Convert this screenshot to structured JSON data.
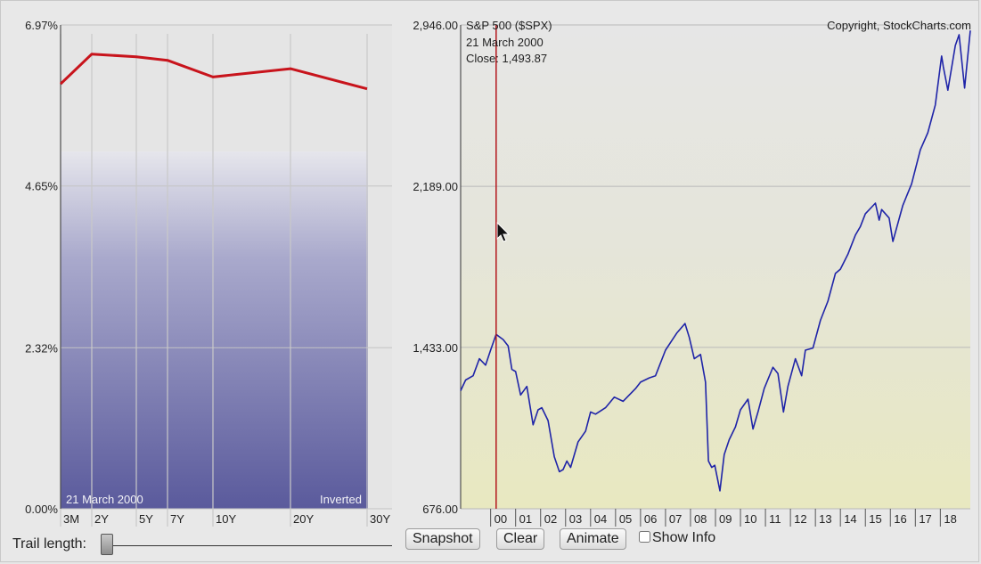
{
  "chart_data": [
    {
      "type": "line",
      "title": "",
      "y_axis": {
        "min": 0,
        "max": 6.97,
        "tick_labels": [
          "6.97%",
          "4.65%",
          "2.32%",
          "0.00%"
        ],
        "tick_values": [
          6.97,
          4.65,
          2.32,
          0
        ]
      },
      "categories": [
        "3M",
        "2Y",
        "5Y",
        "7Y",
        "10Y",
        "20Y",
        "30Y"
      ],
      "category_months": [
        3,
        24,
        60,
        84,
        120,
        240,
        360
      ],
      "series": [
        {
          "values": [
            6.12,
            6.55,
            6.51,
            6.46,
            6.22,
            6.34,
            6.05
          ]
        }
      ],
      "line_color": "#c8141c",
      "fill_gradient": [
        "#e3e3ea",
        "#5a5a9c"
      ],
      "bottom_left_label": "21  March 2000",
      "bottom_right_label": "Inverted",
      "grid": true
    },
    {
      "type": "line",
      "title": "S&P 500 ($SPX)",
      "copyright": "Copyright, StockCharts.com",
      "y_axis": {
        "min": 676,
        "max": 2946,
        "tick_labels": [
          "2,946.00",
          "2,189.00",
          "1,433.00",
          "676.00"
        ],
        "tick_values": [
          2946,
          2189,
          1433,
          676
        ]
      },
      "x_tick_labels": [
        "00",
        "01",
        "02",
        "03",
        "04",
        "05",
        "06",
        "07",
        "08",
        "09",
        "10",
        "11",
        "12",
        "13",
        "14",
        "15",
        "16",
        "17",
        "18"
      ],
      "x_tick_years": [
        2000,
        2001,
        2002,
        2003,
        2004,
        2005,
        2006,
        2007,
        2008,
        2009,
        2010,
        2011,
        2012,
        2013,
        2014,
        2015,
        2016,
        2017,
        2018
      ],
      "x_range": [
        1998.8,
        2019.2
      ],
      "series": [
        {
          "x": [
            1998.8,
            1999.0,
            1999.3,
            1999.55,
            1999.8,
            2000.0,
            2000.22,
            2000.5,
            2000.7,
            2000.85,
            2001.0,
            2001.2,
            2001.45,
            2001.7,
            2001.9,
            2002.05,
            2002.3,
            2002.55,
            2002.75,
            2002.9,
            2003.05,
            2003.2,
            2003.5,
            2003.8,
            2004.0,
            2004.2,
            2004.6,
            2004.95,
            2005.3,
            2005.8,
            2006.0,
            2006.35,
            2006.6,
            2007.0,
            2007.45,
            2007.78,
            2007.95,
            2008.15,
            2008.4,
            2008.6,
            2008.72,
            2008.85,
            2008.97,
            2009.18,
            2009.35,
            2009.55,
            2009.8,
            2010.0,
            2010.3,
            2010.5,
            2010.7,
            2010.95,
            2011.3,
            2011.5,
            2011.72,
            2011.9,
            2012.2,
            2012.45,
            2012.6,
            2012.9,
            2013.2,
            2013.5,
            2013.8,
            2014.0,
            2014.3,
            2014.6,
            2014.8,
            2015.0,
            2015.4,
            2015.55,
            2015.65,
            2015.95,
            2016.1,
            2016.5,
            2016.85,
            2017.2,
            2017.5,
            2017.8,
            2018.05,
            2018.12,
            2018.3,
            2018.6,
            2018.75,
            2018.97,
            2019.2
          ],
          "y": [
            1230,
            1280,
            1300,
            1380,
            1350,
            1420,
            1494,
            1470,
            1440,
            1330,
            1320,
            1210,
            1250,
            1070,
            1140,
            1150,
            1090,
            920,
            850,
            860,
            900,
            870,
            990,
            1040,
            1130,
            1120,
            1150,
            1200,
            1180,
            1240,
            1270,
            1290,
            1300,
            1420,
            1500,
            1545,
            1480,
            1380,
            1400,
            1270,
            900,
            870,
            880,
            760,
            930,
            1000,
            1060,
            1140,
            1190,
            1050,
            1130,
            1240,
            1340,
            1310,
            1130,
            1250,
            1380,
            1300,
            1420,
            1430,
            1560,
            1650,
            1780,
            1800,
            1870,
            1960,
            2000,
            2060,
            2110,
            2030,
            2080,
            2040,
            1930,
            2100,
            2200,
            2360,
            2440,
            2570,
            2800,
            2750,
            2640,
            2850,
            2900,
            2650,
            2920
          ],
          "color": "#1f24a8"
        }
      ],
      "marker": {
        "date_label": "21  March 2000",
        "close_label": "Close: 1,493.87",
        "x": 2000.22,
        "color": "#b3161c"
      },
      "background_gradient": [
        "#e5e5e5",
        "#e7e7c3"
      ],
      "grid": true
    }
  ],
  "controls": {
    "trail_label": "Trail length:",
    "snapshot_label": "Snapshot",
    "clear_label": "Clear",
    "animate_label": "Animate",
    "show_info_label": "Show Info"
  }
}
